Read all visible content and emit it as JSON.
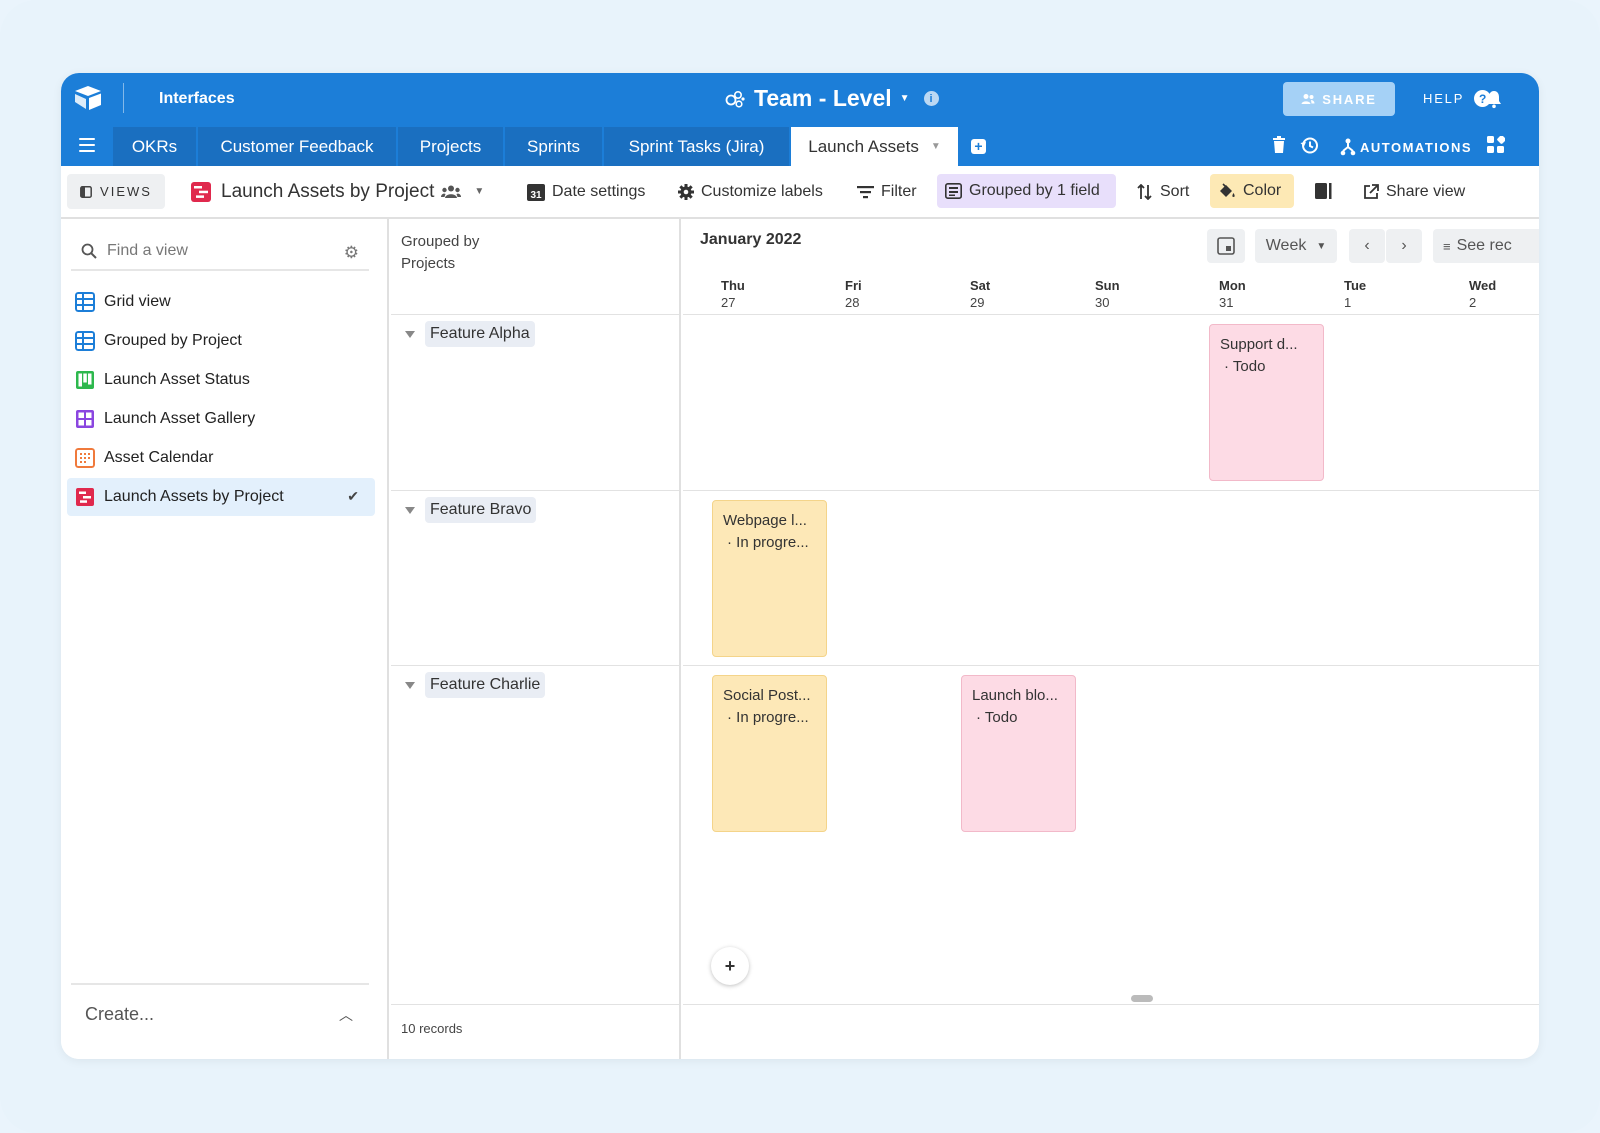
{
  "header": {
    "app_label": "Interfaces",
    "base_title": "Team - Level",
    "share_label": "SHARE",
    "help_label": "HELP"
  },
  "tabs": [
    {
      "label": "OKRs"
    },
    {
      "label": "Customer Feedback"
    },
    {
      "label": "Projects"
    },
    {
      "label": "Sprints"
    },
    {
      "label": "Sprint Tasks (Jira)"
    },
    {
      "label": "Launch Assets",
      "active": true
    }
  ],
  "tab_tools": {
    "automations_label": "AUTOMATIONS"
  },
  "toolbar": {
    "views_label": "VIEWS",
    "current_view": "Launch Assets by Project",
    "date_settings": "Date settings",
    "customize_labels": "Customize labels",
    "filter": "Filter",
    "grouped": "Grouped by 1 field",
    "sort": "Sort",
    "color": "Color",
    "share_view": "Share view"
  },
  "sidebar": {
    "search_placeholder": "Find a view",
    "items": [
      {
        "label": "Grid view",
        "icon": "grid-icon",
        "color": "#1c7ed8"
      },
      {
        "label": "Grouped by Project",
        "icon": "grid-icon",
        "color": "#1c7ed8"
      },
      {
        "label": "Launch Asset Status",
        "icon": "kanban-icon",
        "color": "#2db84d"
      },
      {
        "label": "Launch Asset Gallery",
        "icon": "gallery-icon",
        "color": "#8b46e0"
      },
      {
        "label": "Asset Calendar",
        "icon": "calendar-icon",
        "color": "#f07a3c"
      },
      {
        "label": "Launch Assets by Project",
        "icon": "timeline-icon",
        "color": "#e0294d",
        "selected": true
      }
    ],
    "create_label": "Create..."
  },
  "groups": {
    "header_line1": "Grouped by",
    "header_line2": "Projects",
    "rows": [
      {
        "label": "Feature Alpha"
      },
      {
        "label": "Feature Bravo"
      },
      {
        "label": "Feature Charlie"
      }
    ],
    "records_count": "10 records"
  },
  "calendar": {
    "month": "January 2022",
    "scale": "Week",
    "see_records": "See rec",
    "days": [
      {
        "dow": "Thu",
        "date": "27"
      },
      {
        "dow": "Fri",
        "date": "28"
      },
      {
        "dow": "Sat",
        "date": "29"
      },
      {
        "dow": "Sun",
        "date": "30"
      },
      {
        "dow": "Mon",
        "date": "31"
      },
      {
        "dow": "Tue",
        "date": "1"
      },
      {
        "dow": "Wed",
        "date": "2"
      }
    ],
    "cards": [
      {
        "title": "Support d...",
        "status": "· Todo",
        "group": "Feature Alpha",
        "day": "Mon 31",
        "color": "#fddbe5"
      },
      {
        "title": "Webpage l...",
        "status": "· In progre...",
        "group": "Feature Bravo",
        "day": "Thu 27",
        "color": "#fde8b7"
      },
      {
        "title": "Social Post...",
        "status": "· In progre...",
        "group": "Feature Charlie",
        "day": "Thu 27",
        "color": "#fde8b7"
      },
      {
        "title": "Launch blo...",
        "status": "· Todo",
        "group": "Feature Charlie",
        "day": "Sat 29",
        "color": "#fddbe5"
      }
    ],
    "add_label": "+"
  }
}
